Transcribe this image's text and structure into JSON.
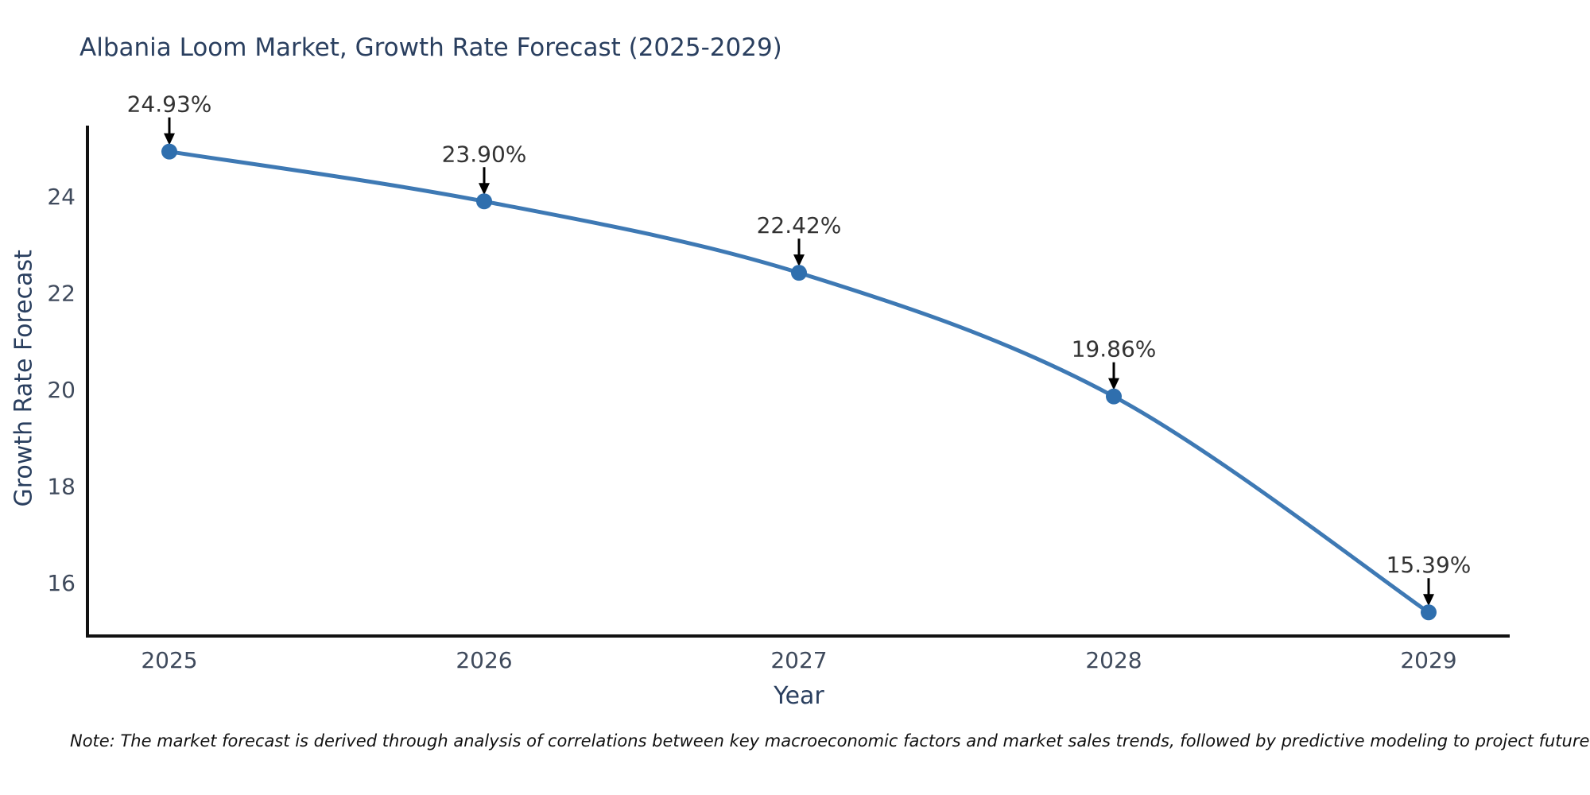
{
  "title": "Albania Loom Market, Growth Rate Forecast (2025-2029)",
  "chart_data": {
    "type": "line",
    "title": "Albania Loom Market, Growth Rate Forecast (2025-2029)",
    "xlabel": "Year",
    "ylabel": "Growth Rate Forecast",
    "x": [
      2025,
      2026,
      2027,
      2028,
      2029
    ],
    "series": [
      {
        "name": "Growth Rate Forecast",
        "values": [
          24.93,
          23.9,
          22.42,
          19.86,
          15.39
        ]
      }
    ],
    "point_labels": [
      "24.93%",
      "23.90%",
      "22.42%",
      "19.86%",
      "15.39%"
    ],
    "yticks": [
      16,
      18,
      20,
      22,
      24
    ],
    "ylim": [
      14.9,
      25.5
    ],
    "grid": false,
    "line_shape": "spline",
    "legend": "none",
    "colors": {
      "line": "#3e79b4",
      "marker": "#2f6fae",
      "axis": "#111111",
      "title_text": "#2a3f5f",
      "tick_text": "#3f4a5c",
      "annotation_text": "#333333",
      "arrow": "#000000",
      "background": "#ffffff"
    }
  },
  "note": {
    "text": "Note: The market forecast is derived through analysis of correlations between key macroeconomic factors and market sales trends, followed by predictive modeling to project future sales"
  }
}
